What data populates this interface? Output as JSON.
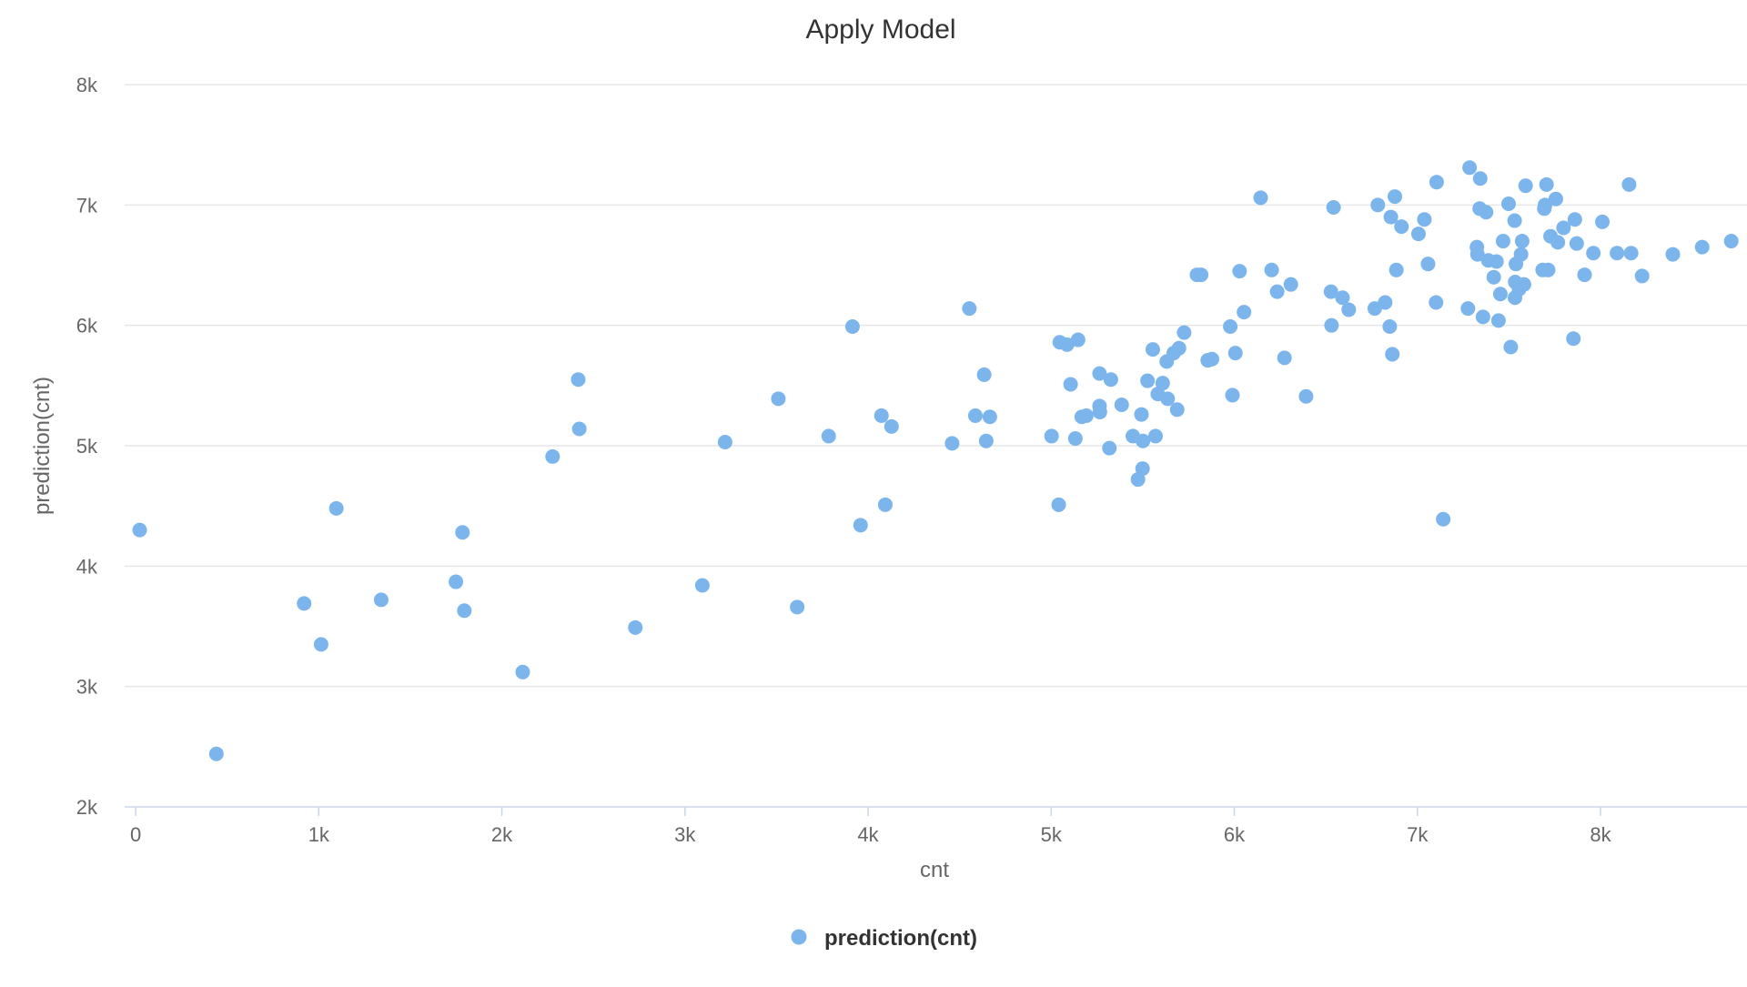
{
  "chart_data": {
    "type": "scatter",
    "title": "Apply Model",
    "xlabel": "cnt",
    "ylabel": "prediction(cnt)",
    "xlim": [
      -60,
      8800
    ],
    "ylim": [
      2000,
      8000
    ],
    "x_ticks": [
      0,
      1000,
      2000,
      3000,
      4000,
      5000,
      6000,
      7000,
      8000
    ],
    "x_tick_labels": [
      "0",
      "1k",
      "2k",
      "3k",
      "4k",
      "5k",
      "6k",
      "7k",
      "8k"
    ],
    "y_ticks": [
      2000,
      3000,
      4000,
      5000,
      6000,
      7000,
      8000
    ],
    "y_tick_labels": [
      "2k",
      "3k",
      "4k",
      "5k",
      "6k",
      "7k",
      "8k"
    ],
    "grid": true,
    "legend_position": "bottom-center",
    "colors": {
      "series": "#7cb5ec",
      "grid": "#e6e6e6",
      "axis": "#ccd6eb"
    },
    "series": [
      {
        "name": "prediction(cnt)",
        "points": [
          [
            22,
            4300
          ],
          [
            441,
            2440
          ],
          [
            920,
            3690
          ],
          [
            1013,
            3350
          ],
          [
            1096,
            4480
          ],
          [
            1341,
            3720
          ],
          [
            1749,
            3870
          ],
          [
            1785,
            4280
          ],
          [
            1795,
            3630
          ],
          [
            2114,
            3120
          ],
          [
            2277,
            4910
          ],
          [
            2417,
            5550
          ],
          [
            2423,
            5140
          ],
          [
            2729,
            3490
          ],
          [
            3095,
            3840
          ],
          [
            3219,
            5030
          ],
          [
            3510,
            5390
          ],
          [
            3613,
            3660
          ],
          [
            3785,
            5080
          ],
          [
            3915,
            5990
          ],
          [
            3959,
            4340
          ],
          [
            4073,
            5250
          ],
          [
            4094,
            4510
          ],
          [
            4128,
            5160
          ],
          [
            4459,
            5020
          ],
          [
            4553,
            6140
          ],
          [
            4586,
            5250
          ],
          [
            4634,
            5590
          ],
          [
            4645,
            5040
          ],
          [
            4665,
            5240
          ],
          [
            5002,
            5080
          ],
          [
            5041,
            4510
          ],
          [
            5047,
            5860
          ],
          [
            5087,
            5840
          ],
          [
            5106,
            5510
          ],
          [
            5132,
            5060
          ],
          [
            5147,
            5880
          ],
          [
            5167,
            5240
          ],
          [
            5192,
            5250
          ],
          [
            5264,
            5600
          ],
          [
            5264,
            5330
          ],
          [
            5266,
            5280
          ],
          [
            5318,
            4980
          ],
          [
            5326,
            5550
          ],
          [
            5385,
            5340
          ],
          [
            5446,
            5080
          ],
          [
            5474,
            4720
          ],
          [
            5493,
            5260
          ],
          [
            5499,
            4810
          ],
          [
            5501,
            5040
          ],
          [
            5526,
            5540
          ],
          [
            5555,
            5800
          ],
          [
            5570,
            5080
          ],
          [
            5582,
            5430
          ],
          [
            5609,
            5520
          ],
          [
            5631,
            5700
          ],
          [
            5636,
            5390
          ],
          [
            5669,
            5770
          ],
          [
            5688,
            5300
          ],
          [
            5698,
            5810
          ],
          [
            5726,
            5940
          ],
          [
            5796,
            6420
          ],
          [
            5819,
            6420
          ],
          [
            5855,
            5710
          ],
          [
            5878,
            5720
          ],
          [
            5978,
            5990
          ],
          [
            5990,
            5420
          ],
          [
            6006,
            5770
          ],
          [
            6029,
            6450
          ],
          [
            6053,
            6110
          ],
          [
            6144,
            7060
          ],
          [
            6204,
            6460
          ],
          [
            6234,
            6280
          ],
          [
            6274,
            5730
          ],
          [
            6309,
            6340
          ],
          [
            6392,
            5410
          ],
          [
            6528,
            6280
          ],
          [
            6531,
            6000
          ],
          [
            6542,
            6980
          ],
          [
            6591,
            6230
          ],
          [
            6625,
            6130
          ],
          [
            6767,
            6140
          ],
          [
            6784,
            7000
          ],
          [
            6824,
            6190
          ],
          [
            6849,
            5990
          ],
          [
            6855,
            6900
          ],
          [
            6863,
            5760
          ],
          [
            6877,
            7070
          ],
          [
            6885,
            6460
          ],
          [
            6913,
            6820
          ],
          [
            7006,
            6760
          ],
          [
            7038,
            6880
          ],
          [
            7058,
            6510
          ],
          [
            7102,
            6190
          ],
          [
            7105,
            7190
          ],
          [
            7141,
            4390
          ],
          [
            7276,
            6140
          ],
          [
            7285,
            7310
          ],
          [
            7325,
            6650
          ],
          [
            7328,
            6590
          ],
          [
            7340,
            6970
          ],
          [
            7343,
            7220
          ],
          [
            7358,
            6070
          ],
          [
            7375,
            6940
          ],
          [
            7387,
            6540
          ],
          [
            7417,
            6400
          ],
          [
            7432,
            6530
          ],
          [
            7443,
            6040
          ],
          [
            7453,
            6260
          ],
          [
            7468,
            6700
          ],
          [
            7498,
            7010
          ],
          [
            7510,
            5820
          ],
          [
            7531,
            6870
          ],
          [
            7533,
            6230
          ],
          [
            7534,
            6360
          ],
          [
            7538,
            6510
          ],
          [
            7555,
            6300
          ],
          [
            7566,
            6590
          ],
          [
            7572,
            6700
          ],
          [
            7582,
            6340
          ],
          [
            7591,
            7160
          ],
          [
            7684,
            6460
          ],
          [
            7693,
            6970
          ],
          [
            7697,
            7000
          ],
          [
            7705,
            7170
          ],
          [
            7714,
            6460
          ],
          [
            7727,
            6740
          ],
          [
            7756,
            7050
          ],
          [
            7767,
            6690
          ],
          [
            7798,
            6810
          ],
          [
            7852,
            5890
          ],
          [
            7860,
            6880
          ],
          [
            7870,
            6680
          ],
          [
            7913,
            6420
          ],
          [
            7961,
            6600
          ],
          [
            8010,
            6860
          ],
          [
            8090,
            6600
          ],
          [
            8156,
            7170
          ],
          [
            8167,
            6600
          ],
          [
            8227,
            6410
          ],
          [
            8395,
            6590
          ],
          [
            8555,
            6650
          ],
          [
            8714,
            6700
          ]
        ]
      }
    ]
  }
}
